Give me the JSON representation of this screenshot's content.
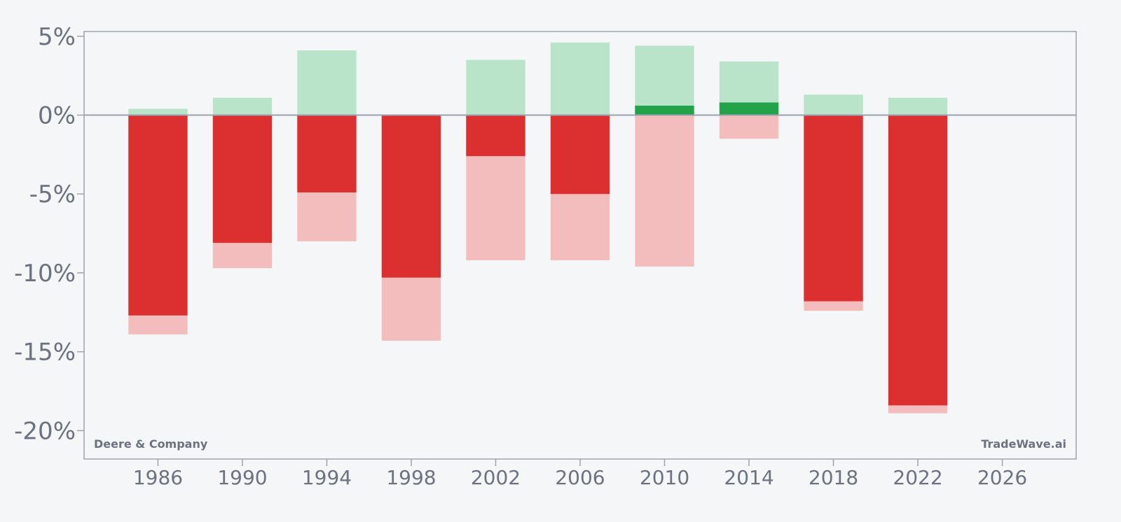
{
  "chart_data": {
    "type": "bar",
    "title": "",
    "xlabel": "",
    "ylabel": "",
    "x_ticks": [
      1986,
      1990,
      1994,
      1998,
      2002,
      2006,
      2010,
      2014,
      2018,
      2022,
      2026
    ],
    "y_ticks": [
      5,
      0,
      -5,
      -10,
      -15,
      -20
    ],
    "y_tick_suffix": "%",
    "xlim": [
      1982.5,
      2029.5
    ],
    "ylim": [
      -21.8,
      5.3
    ],
    "grid": false,
    "legend": "none",
    "bars": [
      {
        "x": 1986,
        "high": 0.4,
        "low": -13.9,
        "close": -12.7
      },
      {
        "x": 1990,
        "high": 1.1,
        "low": -9.7,
        "close": -8.1
      },
      {
        "x": 1994,
        "high": 4.1,
        "low": -8.0,
        "close": -4.9
      },
      {
        "x": 1998,
        "high": 0.0,
        "low": -14.3,
        "close": -10.3
      },
      {
        "x": 2002,
        "high": 3.5,
        "low": -9.2,
        "close": -2.6
      },
      {
        "x": 2006,
        "high": 4.6,
        "low": -9.2,
        "close": -5.0
      },
      {
        "x": 2010,
        "high": 4.4,
        "low": -9.6,
        "close": 0.6
      },
      {
        "x": 2014,
        "high": 3.4,
        "low": -1.5,
        "close": 0.8
      },
      {
        "x": 2018,
        "high": 1.3,
        "low": -12.4,
        "close": -11.8
      },
      {
        "x": 2022,
        "high": 1.1,
        "low": -18.9,
        "close": -18.4
      }
    ],
    "colors": {
      "positive_close": "#22a34a",
      "negative_close": "#dc3030",
      "positive_range": "#b9e4c9",
      "negative_range": "#f4bdbd",
      "axis": "#9ca3af",
      "text": "#6b7280"
    }
  },
  "watermarks": {
    "left": "Deere & Company",
    "right": "TradeWave.ai"
  }
}
